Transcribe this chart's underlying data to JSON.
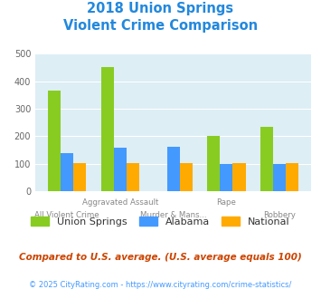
{
  "title_line1": "2018 Union Springs",
  "title_line2": "Violent Crime Comparison",
  "categories": [
    "All Violent Crime",
    "Aggravated Assault",
    "Murder & Mans...",
    "Rape",
    "Robbery"
  ],
  "series": {
    "Union Springs": [
      367,
      452,
      0,
      202,
      235
    ],
    "Alabama": [
      138,
      160,
      162,
      100,
      100
    ],
    "National": [
      103,
      103,
      103,
      104,
      103
    ]
  },
  "colors": {
    "Union Springs": "#88cc22",
    "Alabama": "#4499ff",
    "National": "#ffaa00"
  },
  "ylim": [
    0,
    500
  ],
  "yticks": [
    0,
    100,
    200,
    300,
    400,
    500
  ],
  "xlabel_top": [
    "",
    "Aggravated Assault",
    "",
    "Rape",
    ""
  ],
  "xlabel_bottom": [
    "All Violent Crime",
    "",
    "Murder & Mans...",
    "",
    "Robbery"
  ],
  "footnote1": "Compared to U.S. average. (U.S. average equals 100)",
  "footnote2": "© 2025 CityRating.com - https://www.cityrating.com/crime-statistics/",
  "title_color": "#2288dd",
  "footnote1_color": "#cc4400",
  "footnote2_color": "#4499ff",
  "bg_color": "#ffffff",
  "plot_bg_color": "#ddeef5"
}
